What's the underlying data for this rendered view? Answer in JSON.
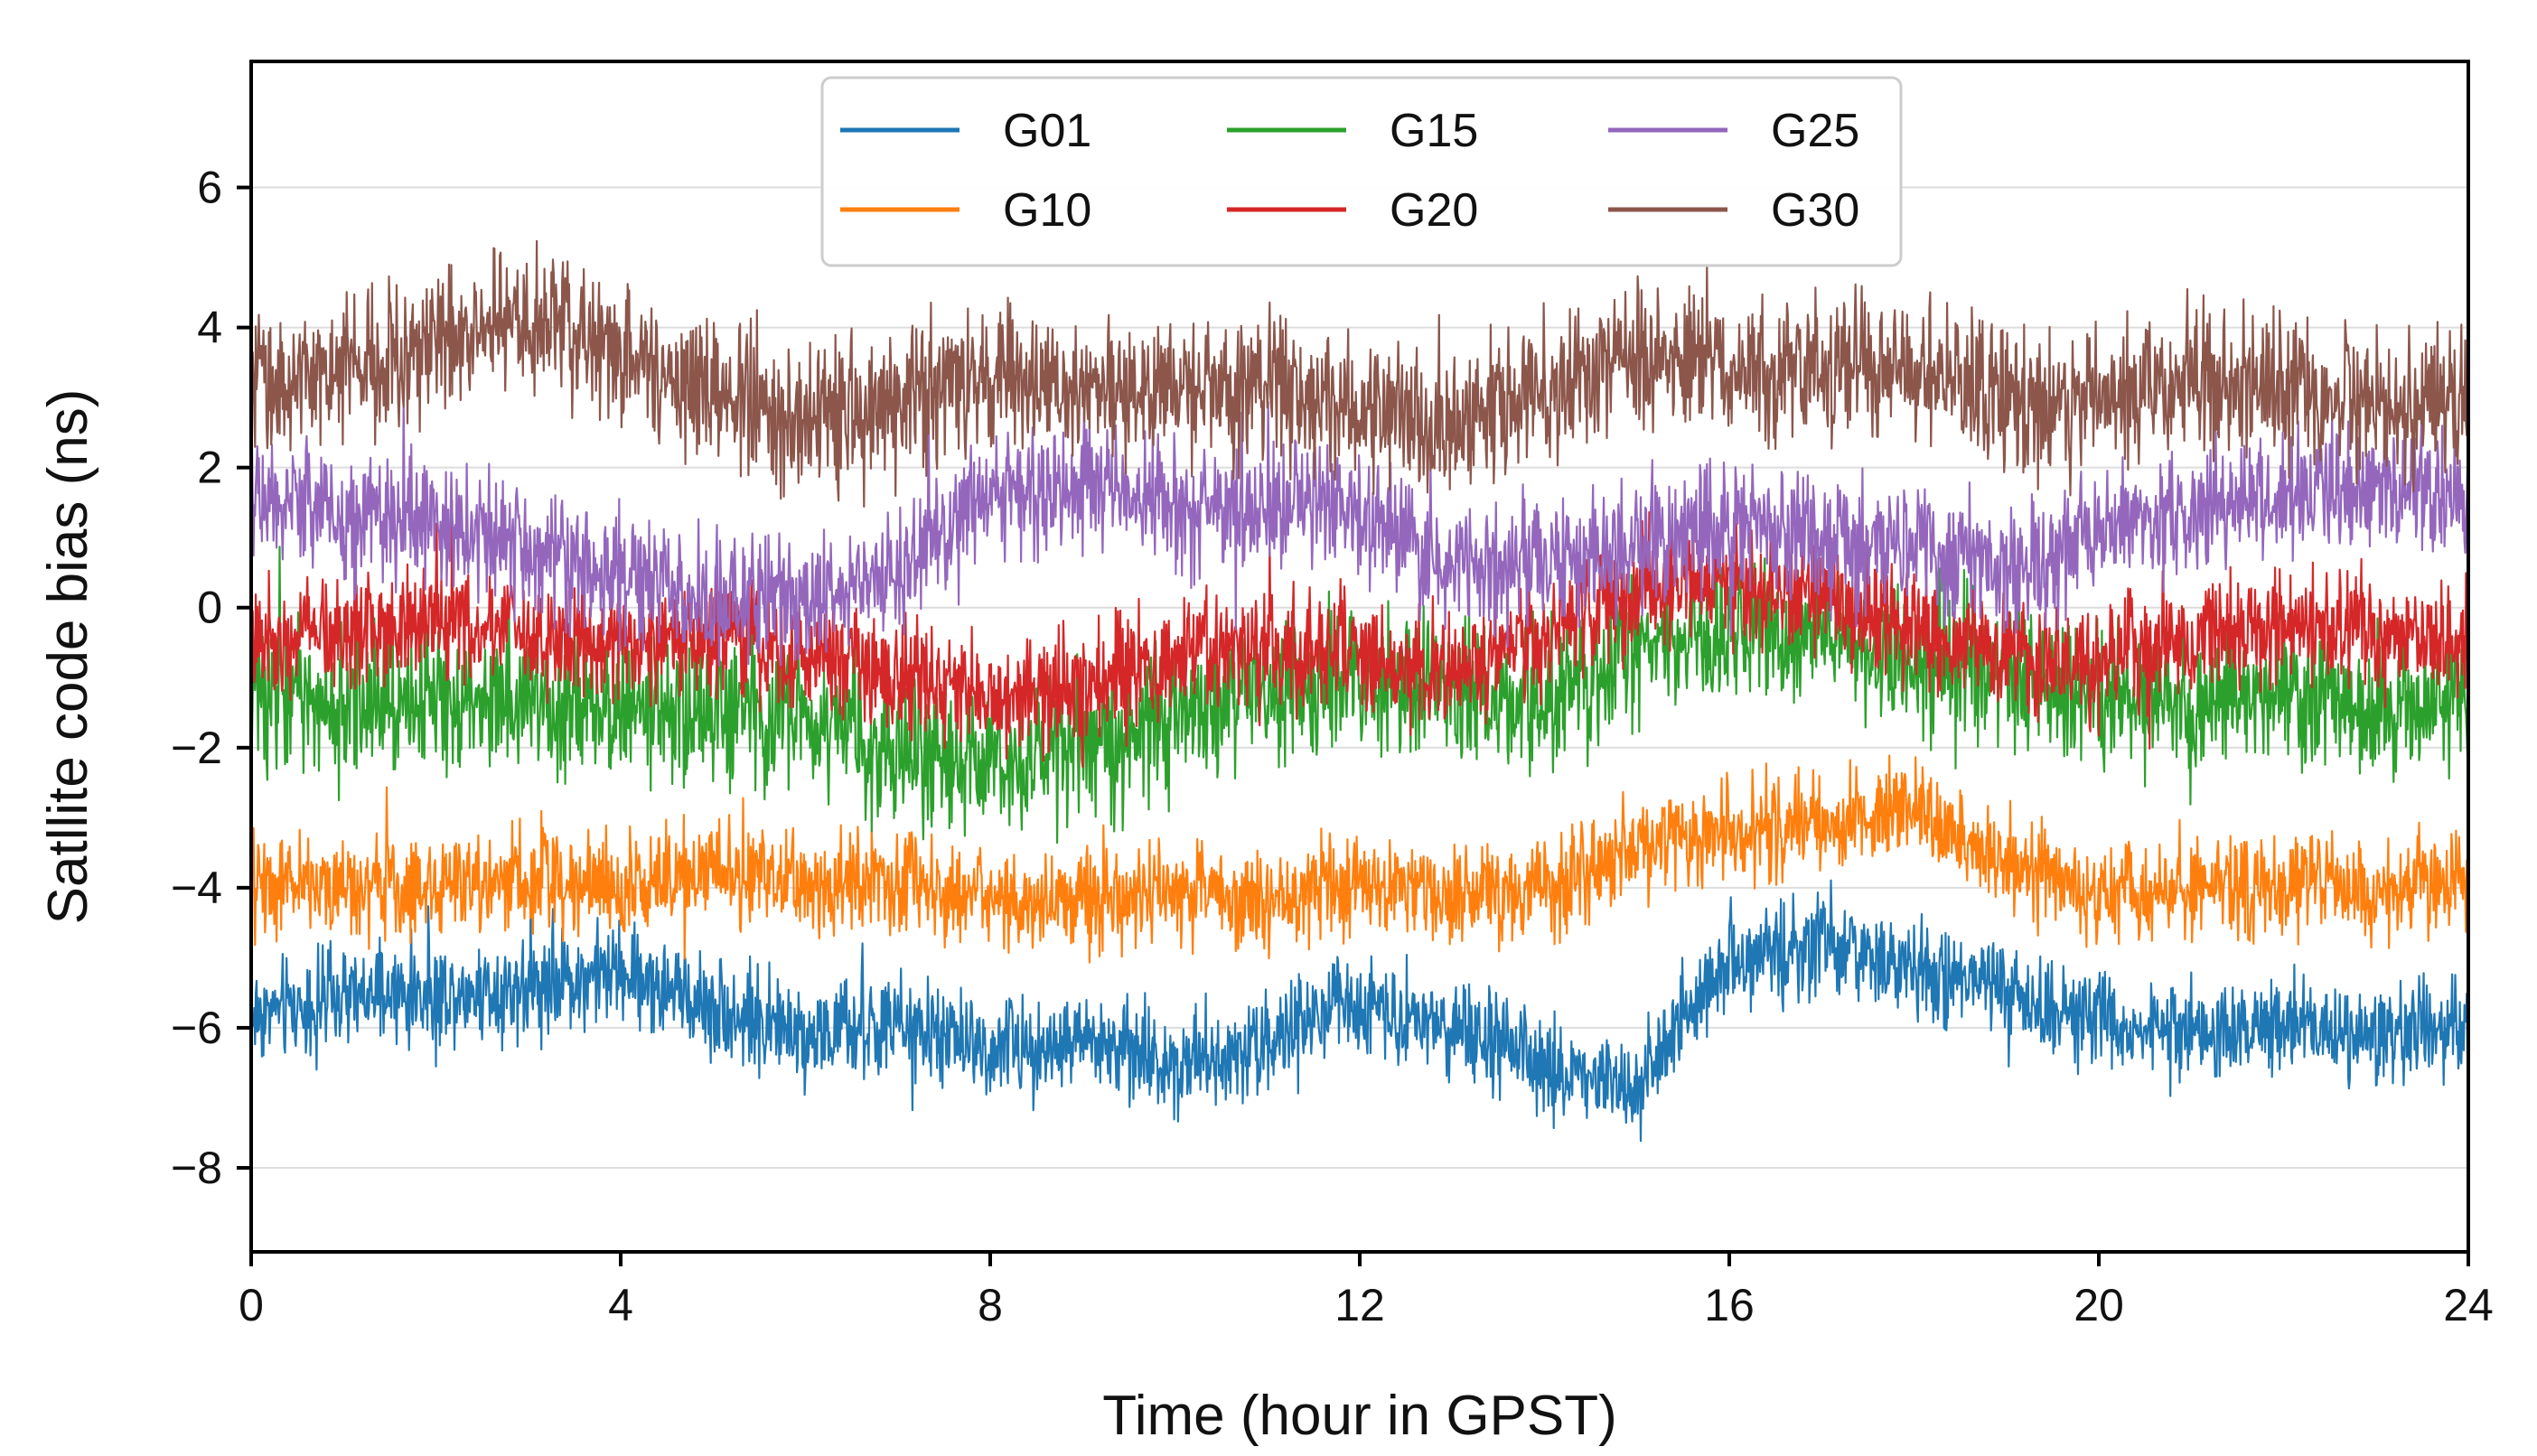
{
  "chart_data": {
    "type": "line",
    "title": "",
    "xlabel": "Time (hour in GPST)",
    "ylabel": "Satllite code bias (ns)",
    "xlim": [
      0,
      24
    ],
    "ylim": [
      -9.2,
      7.8
    ],
    "xticks": [
      0,
      4,
      8,
      12,
      16,
      20,
      24
    ],
    "xtick_labels": [
      "0",
      "4",
      "8",
      "12",
      "16",
      "20",
      "24"
    ],
    "yticks": [
      6,
      4,
      2,
      0,
      -2,
      -4,
      -6,
      -8
    ],
    "ytick_labels": [
      "6",
      "4",
      "2",
      "0",
      "−2",
      "−4",
      "−6",
      "−8"
    ],
    "grid": "horizontal",
    "legend_position": "top-center",
    "legend_columns": 3,
    "x": [
      0,
      1,
      2,
      3,
      4,
      5,
      6,
      7,
      8,
      9,
      10,
      11,
      12,
      13,
      14,
      15,
      16,
      17,
      18,
      19,
      20,
      21,
      22,
      23,
      24
    ],
    "series": [
      {
        "name": "G01",
        "color": "#1f77b4",
        "noise": 0.35,
        "values": [
          -5.8,
          -5.6,
          -5.5,
          -5.4,
          -5.2,
          -5.7,
          -6.1,
          -6.0,
          -6.3,
          -6.2,
          -6.5,
          -6.2,
          -5.6,
          -6.0,
          -6.6,
          -6.8,
          -5.0,
          -4.8,
          -5.2,
          -5.5,
          -5.9,
          -6.1,
          -6.0,
          -6.1,
          -5.9
        ]
      },
      {
        "name": "G10",
        "color": "#ff7f0e",
        "noise": 0.35,
        "values": [
          -3.9,
          -4.0,
          -4.0,
          -3.8,
          -4.0,
          -3.7,
          -4.0,
          -3.9,
          -4.2,
          -4.3,
          -4.0,
          -4.2,
          -3.9,
          -4.1,
          -4.0,
          -3.4,
          -3.2,
          -3.0,
          -2.9,
          -3.6,
          -4.1,
          -4.0,
          -3.9,
          -4.1,
          -3.8
        ]
      },
      {
        "name": "G15",
        "color": "#2ca02c",
        "noise": 0.5,
        "values": [
          -1.2,
          -1.4,
          -1.2,
          -1.3,
          -1.5,
          -1.4,
          -1.6,
          -2.1,
          -2.3,
          -2.0,
          -1.6,
          -1.2,
          -1.1,
          -1.2,
          -1.4,
          -0.6,
          -0.3,
          -0.4,
          -0.7,
          -1.0,
          -1.2,
          -1.3,
          -1.2,
          -1.4,
          -1.3
        ]
      },
      {
        "name": "G20",
        "color": "#d62728",
        "noise": 0.4,
        "values": [
          -0.4,
          -0.3,
          -0.2,
          -0.4,
          -0.6,
          -0.5,
          -0.6,
          -1.0,
          -1.3,
          -1.2,
          -0.7,
          -0.6,
          -0.7,
          -0.9,
          -0.3,
          0.2,
          0.4,
          0.1,
          -0.3,
          -0.6,
          -0.8,
          -0.4,
          -0.3,
          -0.4,
          -0.5
        ]
      },
      {
        "name": "G25",
        "color": "#9467bd",
        "noise": 0.45,
        "values": [
          1.6,
          1.3,
          1.2,
          0.8,
          0.4,
          0.2,
          0.1,
          0.5,
          1.6,
          1.8,
          1.4,
          1.5,
          1.4,
          0.6,
          0.7,
          0.9,
          1.1,
          1.0,
          0.8,
          0.5,
          1.1,
          1.3,
          1.6,
          1.8,
          1.5
        ]
      },
      {
        "name": "G30",
        "color": "#8c564b",
        "noise": 0.5,
        "values": [
          3.1,
          3.4,
          3.8,
          4.1,
          3.6,
          3.2,
          2.6,
          2.9,
          3.3,
          3.1,
          3.2,
          3.1,
          2.8,
          2.6,
          3.1,
          3.6,
          3.5,
          3.3,
          3.4,
          3.0,
          2.9,
          3.3,
          3.0,
          2.9,
          2.8
        ]
      }
    ]
  }
}
